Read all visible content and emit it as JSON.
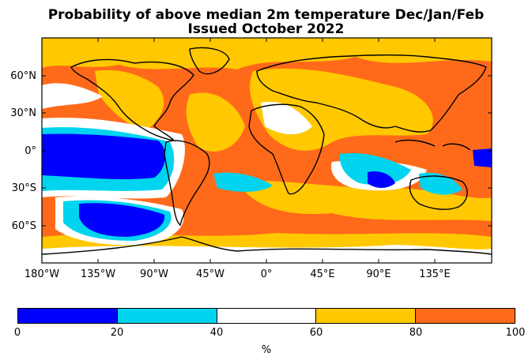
{
  "title_line1": "Probability of above median 2m temperature Dec/Jan/Feb",
  "title_line2": "Issued October 2022",
  "lat_labels": [
    "60°N",
    "30°N",
    "0°",
    "30°S",
    "60°S"
  ],
  "lon_labels": [
    "180°W",
    "135°W",
    "90°W",
    "45°W",
    "0°",
    "45°E",
    "90°E",
    "135°E"
  ],
  "colorbar": {
    "ticks": [
      "0",
      "20",
      "40",
      "60",
      "80",
      "100"
    ],
    "unit": "%",
    "colors": [
      "#0000ff",
      "#00d4ee",
      "#ffffff",
      "#ffc800",
      "#ff6a1a"
    ]
  }
}
